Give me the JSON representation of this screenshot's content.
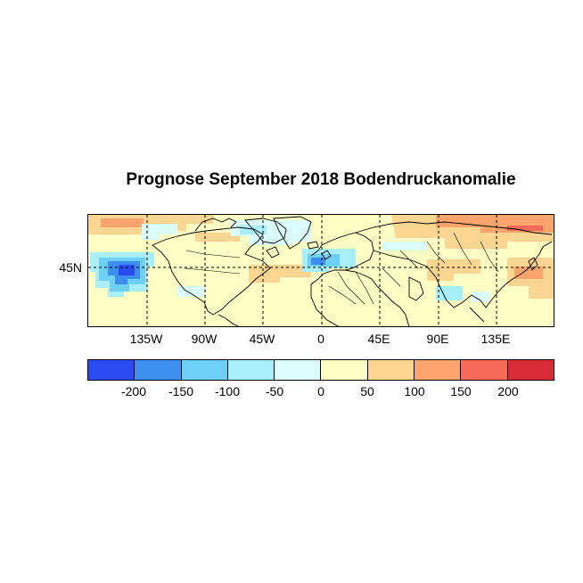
{
  "title": "Prognose September 2018 Bodendruckanomalie",
  "y_ticks": [
    "45N"
  ],
  "x_ticks": [
    "135W",
    "90W",
    "45W",
    "0",
    "45E",
    "90E",
    "135E"
  ],
  "colorbar": {
    "colors": [
      "#2a4bf2",
      "#3e8ef0",
      "#6fd0f7",
      "#a8eefb",
      "#dcfdfd",
      "#fffec4",
      "#fed692",
      "#fda56c",
      "#f76a58",
      "#d92b37"
    ],
    "labels": [
      "-200",
      "-150",
      "-100",
      "-50",
      "0",
      "50",
      "100",
      "150",
      "200"
    ]
  },
  "legend_colors": {
    "strong_negative": "#2a4bf2",
    "negative": "#3e8ef0",
    "weak_negative": "#a8eefb",
    "neutral": "#fffec4",
    "positive": "#fed692",
    "strong_positive": "#fda56c"
  }
}
